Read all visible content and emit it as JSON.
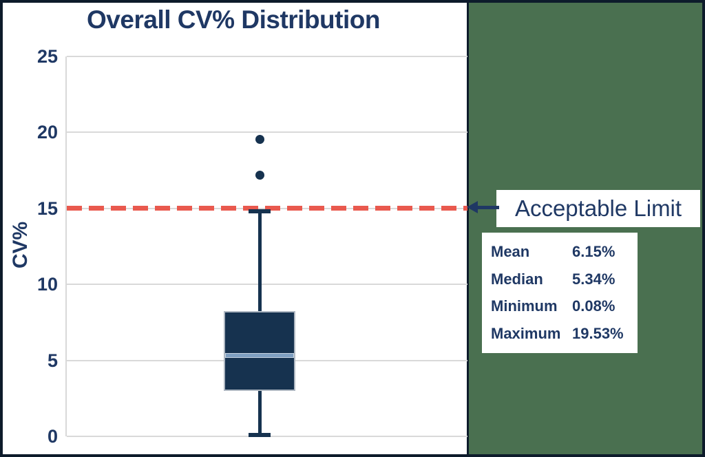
{
  "figure": {
    "title": "Overall CV% Distribution",
    "panel_background": "#4A7050",
    "border_color": "#0D1B2B"
  },
  "chart_data": {
    "type": "boxplot",
    "title": "Overall CV% Distribution",
    "xlabel": "",
    "ylabel": "CV%",
    "ylim": [
      0,
      25
    ],
    "yticks": [
      0,
      5,
      10,
      15,
      20,
      25
    ],
    "grid": true,
    "series": [
      {
        "name": "Overall CV%",
        "whisker_low": 0.08,
        "q1": 3.0,
        "median": 5.34,
        "q3": 8.25,
        "whisker_high": 14.8,
        "outliers": [
          17.2,
          19.53
        ]
      }
    ],
    "reference_line": {
      "value": 15,
      "style": "dashed",
      "color": "#E9594E",
      "label": "Acceptable Limit"
    }
  },
  "annotation": {
    "limit_label": "Acceptable Limit",
    "arrow_icon": "left-arrow"
  },
  "stats": {
    "rows": [
      {
        "label": "Mean",
        "value": "6.15%"
      },
      {
        "label": "Median",
        "value": "5.34%"
      },
      {
        "label": "Minimum",
        "value": "0.08%"
      },
      {
        "label": "Maximum",
        "value": "19.53%"
      }
    ]
  },
  "colors": {
    "box_fill": "#16324F",
    "box_border": "#AFB8C2",
    "median_fill": "#7E9FC1",
    "median_border": "#C6D3E1",
    "whisker": "#16324F",
    "outlier": "#16324F",
    "gridline": "#D9D9D9",
    "text_navy": "#1F3864",
    "reference_red": "#E9594E",
    "panel_green": "#4A7050"
  }
}
